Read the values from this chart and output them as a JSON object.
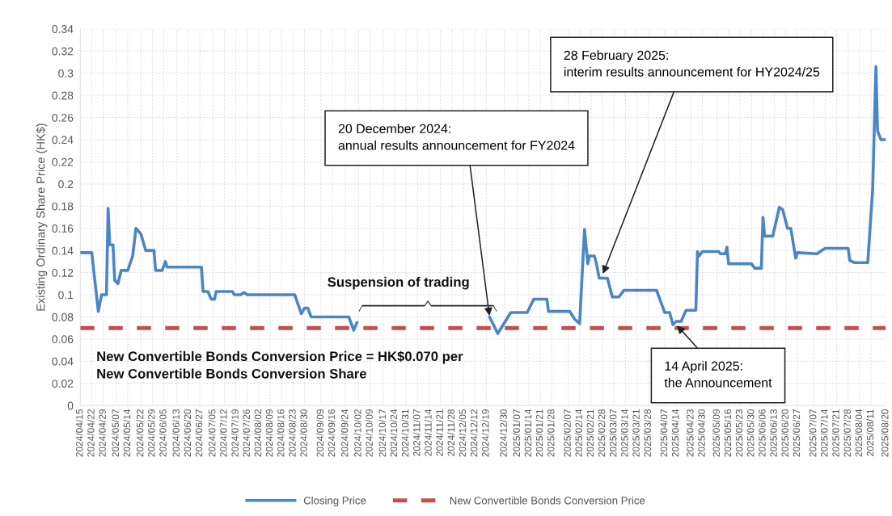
{
  "chart_data": {
    "type": "line",
    "ylabel": "Existing Ordinary Share Price (HK$)",
    "xlim": [
      "2024-04-15",
      "2025-08-20"
    ],
    "xticks": [
      {
        "value": "2024-04-15",
        "label": "2024/04/15"
      },
      {
        "value": "2024-04-22",
        "label": "2024/04/22"
      },
      {
        "value": "2024-04-29",
        "label": "2024/04/29"
      },
      {
        "value": "2024-05-07",
        "label": "2024/05/07"
      },
      {
        "value": "2024-05-14",
        "label": "2024/05/14"
      },
      {
        "value": "2024-05-22",
        "label": "2024/05/22"
      },
      {
        "value": "2024-05-29",
        "label": "2024/05/29"
      },
      {
        "value": "2024-06-05",
        "label": "2024/06/05"
      },
      {
        "value": "2024-06-13",
        "label": "2024/06/13"
      },
      {
        "value": "2024-06-20",
        "label": "2024/06/20"
      },
      {
        "value": "2024-06-27",
        "label": "2024/06/27"
      },
      {
        "value": "2024-07-05",
        "label": "2024/07/05"
      },
      {
        "value": "2024-07-12",
        "label": "2024/07/12"
      },
      {
        "value": "2024-07-19",
        "label": "2024/07/19"
      },
      {
        "value": "2024-07-26",
        "label": "2024/07/26"
      },
      {
        "value": "2024-08-02",
        "label": "2024/08/02"
      },
      {
        "value": "2024-08-09",
        "label": "2024/08/09"
      },
      {
        "value": "2024-08-16",
        "label": "2024/08/16"
      },
      {
        "value": "2024-08-23",
        "label": "2024/08/23"
      },
      {
        "value": "2024-08-30",
        "label": "2024/08/30"
      },
      {
        "value": "2024-09-09",
        "label": "2024/09/09"
      },
      {
        "value": "2024-09-16",
        "label": "2024/09/16"
      },
      {
        "value": "2024-09-24",
        "label": "2024/09/24"
      },
      {
        "value": "2024-10-02",
        "label": "2024/10/02"
      },
      {
        "value": "2024-10-09",
        "label": "2024/10/09"
      },
      {
        "value": "2024-10-17",
        "label": "2024/10/17"
      },
      {
        "value": "2024-10-24",
        "label": "2024/10/24"
      },
      {
        "value": "2024-10-31",
        "label": "2024/10/31"
      },
      {
        "value": "2024-11-07",
        "label": "2024/11/07"
      },
      {
        "value": "2024-11-14",
        "label": "2024/11/14"
      },
      {
        "value": "2024-11-21",
        "label": "2024/11/21"
      },
      {
        "value": "2024-11-28",
        "label": "2024/11/28"
      },
      {
        "value": "2024-12-05",
        "label": "2024/12/05"
      },
      {
        "value": "2024-12-12",
        "label": "2024/12/12"
      },
      {
        "value": "2024-12-19",
        "label": "2024/12/19"
      },
      {
        "value": "2024-12-30",
        "label": "2024/12/30"
      },
      {
        "value": "2025-01-07",
        "label": "2025/01/07"
      },
      {
        "value": "2025-01-14",
        "label": "2025/01/14"
      },
      {
        "value": "2025-01-21",
        "label": "2025/01/21"
      },
      {
        "value": "2025-01-28",
        "label": "2025/01/28"
      },
      {
        "value": "2025-02-07",
        "label": "2025/02/07"
      },
      {
        "value": "2025-02-14",
        "label": "2025/02/14"
      },
      {
        "value": "2025-02-21",
        "label": "2025/02/21"
      },
      {
        "value": "2025-02-28",
        "label": "2025/02/28"
      },
      {
        "value": "2025-03-07",
        "label": "2025/03/07"
      },
      {
        "value": "2025-03-14",
        "label": "2025/03/14"
      },
      {
        "value": "2025-03-21",
        "label": "2025/03/21"
      },
      {
        "value": "2025-03-28",
        "label": "2025/03/28"
      },
      {
        "value": "2025-04-07",
        "label": "2025/04/07"
      },
      {
        "value": "2025-04-14",
        "label": "2025/04/14"
      },
      {
        "value": "2025-04-23",
        "label": "2025/04/23"
      },
      {
        "value": "2025-04-30",
        "label": "2025/04/30"
      },
      {
        "value": "2025-05-09",
        "label": "2025/05/09"
      },
      {
        "value": "2025-05-16",
        "label": "2025/05/16"
      },
      {
        "value": "2025-05-23",
        "label": "2025/05/23"
      },
      {
        "value": "2025-05-30",
        "label": "2025/05/30"
      },
      {
        "value": "2025-06-06",
        "label": "2025/06/06"
      },
      {
        "value": "2025-06-13",
        "label": "2025/06/13"
      },
      {
        "value": "2025-06-20",
        "label": "2025/06/20"
      },
      {
        "value": "2025-06-27",
        "label": "2025/06/27"
      },
      {
        "value": "2025-07-07",
        "label": "2025/07/07"
      },
      {
        "value": "2025-07-14",
        "label": "2025/07/14"
      },
      {
        "value": "2025-07-21",
        "label": "2025/07/21"
      },
      {
        "value": "2025-07-28",
        "label": "2025/07/28"
      },
      {
        "value": "2025-08-04",
        "label": "2025/08/04"
      },
      {
        "value": "2025-08-11",
        "label": "2025/08/11"
      },
      {
        "value": "2025-08-20",
        "label": "2025/08/20"
      }
    ],
    "ylim": [
      0,
      0.34
    ],
    "yticks": [
      0,
      0.02,
      0.04,
      0.06,
      0.08,
      0.1,
      0.12,
      0.14,
      0.16,
      0.18,
      0.2,
      0.22,
      0.24,
      0.26,
      0.28,
      0.3,
      0.32,
      0.34
    ],
    "grid": true,
    "legend": "bottom",
    "series": [
      {
        "name": "Closing Price",
        "color": "#4a86c5",
        "line_style": "solid",
        "x": [
          "2024-04-15",
          "2024-04-22",
          "2024-04-26",
          "2024-04-28",
          "2024-05-01",
          "2024-05-02",
          "2024-05-03",
          "2024-05-05",
          "2024-05-06",
          "2024-05-08",
          "2024-05-10",
          "2024-05-14",
          "2024-05-17",
          "2024-05-19",
          "2024-05-22",
          "2024-05-25",
          "2024-05-30",
          "2024-05-31",
          "2024-06-04",
          "2024-06-06",
          "2024-06-07",
          "2024-06-28",
          "2024-06-29",
          "2024-07-02",
          "2024-07-04",
          "2024-07-06",
          "2024-07-07",
          "2024-07-17",
          "2024-07-18",
          "2024-07-22",
          "2024-07-24",
          "2024-07-26",
          "2024-08-24",
          "2024-08-28",
          "2024-08-30",
          "2024-09-01",
          "2024-09-03",
          "2024-09-26",
          "2024-09-29",
          "2024-10-01",
          "2024-11-15",
          "2024-12-21",
          "2024-12-26",
          "2025-01-03",
          "2025-01-13",
          "2025-01-17",
          "2025-01-25",
          "2025-01-26",
          "2025-02-08",
          "2025-02-11",
          "2025-02-14",
          "2025-02-17",
          "2025-02-19",
          "2025-02-20",
          "2025-02-23",
          "2025-02-24",
          "2025-02-26",
          "2025-03-03",
          "2025-03-06",
          "2025-03-10",
          "2025-03-13",
          "2025-04-02",
          "2025-04-07",
          "2025-04-10",
          "2025-04-12",
          "2025-04-14",
          "2025-04-17",
          "2025-04-20",
          "2025-04-26",
          "2025-04-27",
          "2025-04-28",
          "2025-04-30",
          "2025-05-10",
          "2025-05-11",
          "2025-05-14",
          "2025-05-15",
          "2025-05-16",
          "2025-05-30",
          "2025-06-01",
          "2025-06-05",
          "2025-06-06",
          "2025-06-07",
          "2025-06-12",
          "2025-06-16",
          "2025-06-18",
          "2025-06-21",
          "2025-06-23",
          "2025-06-26",
          "2025-06-27",
          "2025-07-09",
          "2025-07-14",
          "2025-07-28",
          "2025-07-29",
          "2025-08-01",
          "2025-08-09",
          "2025-08-12",
          "2025-08-14",
          "2025-08-15",
          "2025-08-17",
          "2025-08-20"
        ],
        "values": [
          0.138,
          0.138,
          0.085,
          0.1,
          0.1,
          0.178,
          0.145,
          0.145,
          0.113,
          0.11,
          0.122,
          0.122,
          0.135,
          0.16,
          0.155,
          0.14,
          0.14,
          0.122,
          0.122,
          0.13,
          0.125,
          0.125,
          0.103,
          0.103,
          0.096,
          0.096,
          0.103,
          0.103,
          0.1,
          0.1,
          0.102,
          0.1,
          0.1,
          0.083,
          0.088,
          0.088,
          0.08,
          0.08,
          0.068,
          0.075,
          null,
          0.08,
          0.065,
          0.084,
          0.084,
          0.096,
          0.096,
          0.085,
          0.085,
          0.078,
          0.074,
          0.159,
          0.128,
          0.135,
          0.135,
          0.13,
          0.115,
          0.115,
          0.098,
          0.098,
          0.104,
          0.104,
          0.084,
          0.084,
          0.073,
          0.076,
          0.076,
          0.086,
          0.086,
          0.139,
          0.135,
          0.139,
          0.139,
          0.137,
          0.137,
          0.143,
          0.128,
          0.128,
          0.124,
          0.124,
          0.17,
          0.153,
          0.153,
          0.179,
          0.177,
          0.16,
          0.16,
          0.133,
          0.138,
          0.137,
          0.142,
          0.142,
          0.131,
          0.129,
          0.129,
          0.195,
          0.306,
          0.248,
          0.24,
          0.24
        ]
      },
      {
        "name": "New Convertible Bonds Conversion Price",
        "color": "#c0504d",
        "line_style": "dashed",
        "x": [
          "2024-04-15",
          "2025-08-20"
        ],
        "values": [
          0.07,
          0.07
        ]
      }
    ],
    "annotations": [
      {
        "text": "20 December 2024:\nannual results announcement for FY2024",
        "x": "2024-12-21",
        "y": 0.08
      },
      {
        "text": "28 February 2025:\ninterim results announcement for HY2024/25",
        "x": "2025-02-28",
        "y": 0.118
      },
      {
        "text": "14 April 2025:\nthe Announcement",
        "x": "2025-04-14",
        "y": 0.073
      },
      "Suspension of trading",
      "New Convertible Bonds Conversion Price = HK$0.070 per\nNew Convertible Bonds Conversion Share"
    ]
  }
}
